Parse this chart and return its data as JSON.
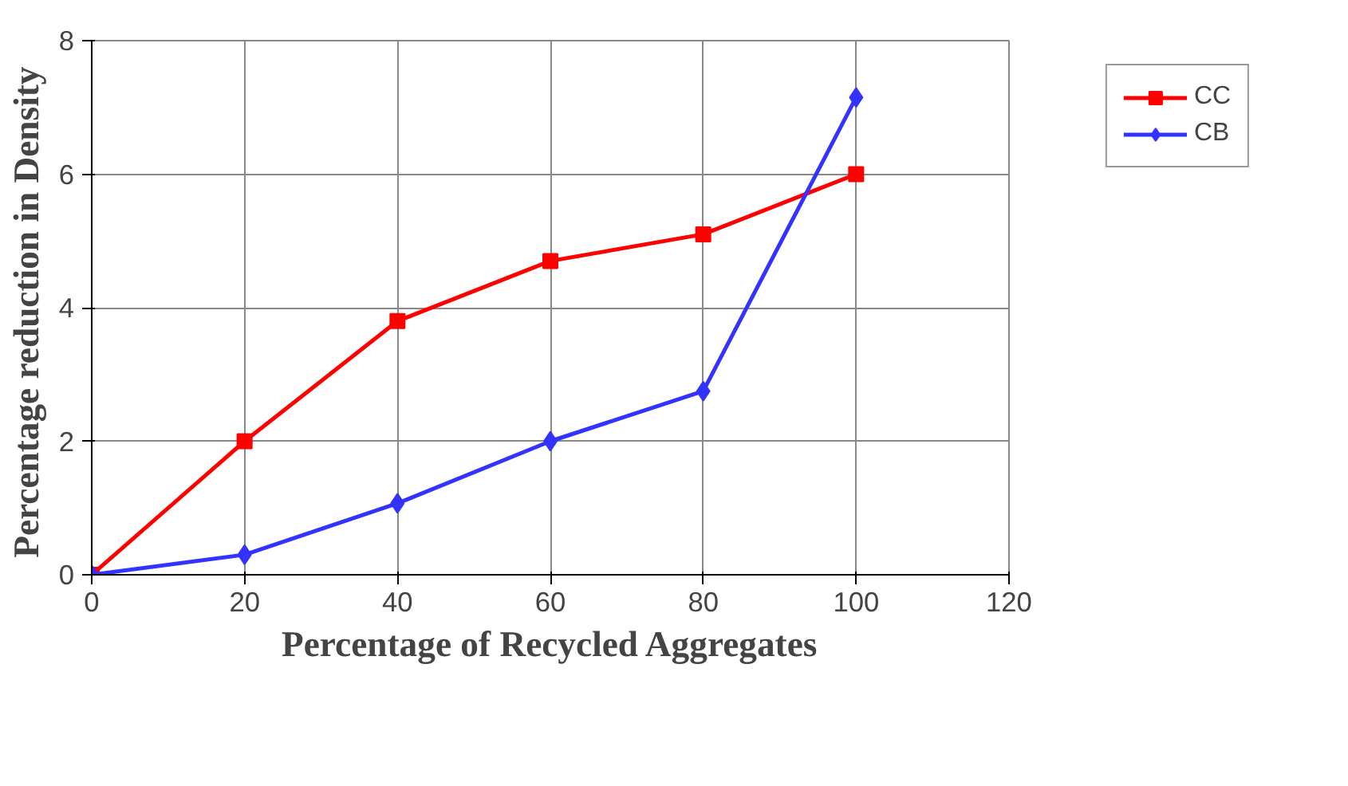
{
  "chart_data": {
    "type": "line",
    "xlabel": "Percentage of Recycled Aggregates",
    "ylabel": "Percentage  reduction in Density",
    "x": [
      0,
      20,
      40,
      60,
      80,
      100
    ],
    "series": [
      {
        "name": "CC",
        "color": "#ff0000",
        "marker": "square",
        "values": [
          0,
          2,
          3.8,
          4.7,
          5.1,
          6
        ]
      },
      {
        "name": "CB",
        "color": "#3333ff",
        "marker": "diamond",
        "values": [
          0,
          0.3,
          1.07,
          2,
          2.75,
          7.15
        ]
      }
    ],
    "xlim": [
      0,
      120
    ],
    "xticks": [
      0,
      20,
      40,
      60,
      80,
      100,
      120
    ],
    "ylim": [
      0,
      8
    ],
    "yticks": [
      0,
      2,
      4,
      6,
      8
    ],
    "grid": true,
    "legend": "top right"
  }
}
